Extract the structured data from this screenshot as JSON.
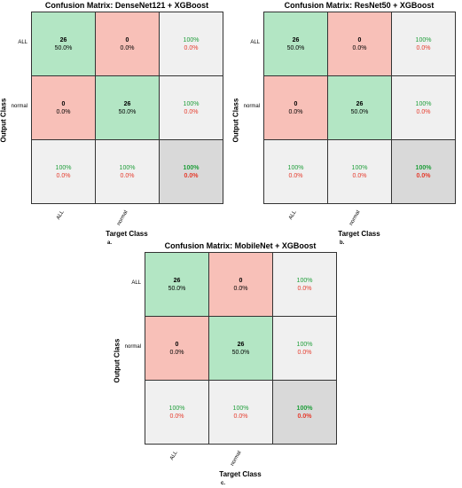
{
  "colors": {
    "correct": "#b3e6c4",
    "wrong": "#f8c0b8",
    "summary": "#f0f0f0",
    "total": "#d9d9d9",
    "good_text": "#1f9e3a",
    "bad_text": "#e53b2c"
  },
  "chart_data": [
    {
      "type": "heatmap",
      "title": "Confusion Matrix: DenseNet121 + XGBoost",
      "xlabel": "Target Class",
      "ylabel": "Output Class",
      "classes": [
        "ALL",
        "normal"
      ],
      "sublabel": "a.",
      "counts": [
        [
          26,
          0
        ],
        [
          0,
          26
        ]
      ],
      "cell_percent": [
        [
          "50.0%",
          "0.0%"
        ],
        [
          "0.0%",
          "50.0%"
        ]
      ],
      "row_summary": [
        [
          "100%",
          "0.0%"
        ],
        [
          "100%",
          "0.0%"
        ]
      ],
      "col_summary": [
        [
          "100%",
          "0.0%"
        ],
        [
          "100%",
          "0.0%"
        ]
      ],
      "total": [
        "100%",
        "0.0%"
      ]
    },
    {
      "type": "heatmap",
      "title": "Confusion Matrix: ResNet50 + XGBoost",
      "xlabel": "Target Class",
      "ylabel": "Output Class",
      "classes": [
        "ALL",
        "normal"
      ],
      "sublabel": "b.",
      "counts": [
        [
          26,
          0
        ],
        [
          0,
          26
        ]
      ],
      "cell_percent": [
        [
          "50.0%",
          "0.0%"
        ],
        [
          "0.0%",
          "50.0%"
        ]
      ],
      "row_summary": [
        [
          "100%",
          "0.0%"
        ],
        [
          "100%",
          "0.0%"
        ]
      ],
      "col_summary": [
        [
          "100%",
          "0.0%"
        ],
        [
          "100%",
          "0.0%"
        ]
      ],
      "total": [
        "100%",
        "0.0%"
      ]
    },
    {
      "type": "heatmap",
      "title": "Confusion Matrix: MobileNet + XGBoost",
      "xlabel": "Target Class",
      "ylabel": "Output Class",
      "classes": [
        "ALL",
        "normal"
      ],
      "sublabel": "c.",
      "counts": [
        [
          26,
          0
        ],
        [
          0,
          26
        ]
      ],
      "cell_percent": [
        [
          "50.0%",
          "0.0%"
        ],
        [
          "0.0%",
          "50.0%"
        ]
      ],
      "row_summary": [
        [
          "100%",
          "0.0%"
        ],
        [
          "100%",
          "0.0%"
        ]
      ],
      "col_summary": [
        [
          "100%",
          "0.0%"
        ],
        [
          "100%",
          "0.0%"
        ]
      ],
      "total": [
        "100%",
        "0.0%"
      ]
    }
  ]
}
